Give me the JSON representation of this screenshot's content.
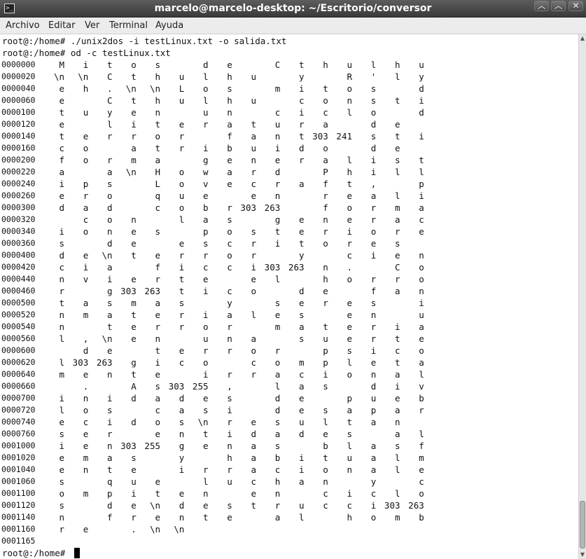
{
  "window": {
    "title": "marcelo@marcelo-desktop: ~/Escritorio/conversor",
    "app_icon": "terminal-icon",
    "controls": {
      "minimize": "︿",
      "maximize": "︿",
      "close": "✕"
    }
  },
  "menu": [
    "Archivo",
    "Editar",
    "Ver",
    "Terminal",
    "Ayuda"
  ],
  "terminal": {
    "commands": [
      "root@:/home# ./unix2dos -i testLinux.txt -o salida.txt",
      "root@:/home# od -c testLinux.txt"
    ],
    "od_rows": [
      {
        "addr": "0000000",
        "chars": [
          "M",
          "i",
          "t",
          "o",
          "s",
          "",
          "d",
          "e",
          "",
          "C",
          "t",
          "h",
          "u",
          "l",
          "h",
          "u"
        ]
      },
      {
        "addr": "0000020",
        "chars": [
          "\\n",
          "\\n",
          "C",
          "t",
          "h",
          "u",
          "l",
          "h",
          "u",
          "",
          "y",
          "",
          "R",
          "'",
          "l",
          "y"
        ]
      },
      {
        "addr": "0000040",
        "chars": [
          "e",
          "h",
          ".",
          "\\n",
          "\\n",
          "L",
          "o",
          "s",
          "",
          "m",
          "i",
          "t",
          "o",
          "s",
          "",
          "d"
        ]
      },
      {
        "addr": "0000060",
        "chars": [
          "e",
          "",
          "C",
          "t",
          "h",
          "u",
          "l",
          "h",
          "u",
          "",
          "c",
          "o",
          "n",
          "s",
          "t",
          "i"
        ]
      },
      {
        "addr": "0000100",
        "chars": [
          "t",
          "u",
          "y",
          "e",
          "n",
          "",
          "u",
          "n",
          "",
          "c",
          "i",
          "c",
          "l",
          "o",
          "",
          "d"
        ]
      },
      {
        "addr": "0000120",
        "chars": [
          "e",
          "",
          "l",
          "i",
          "t",
          "e",
          "r",
          "a",
          "t",
          "u",
          "r",
          "a",
          "",
          "d",
          "e",
          ""
        ]
      },
      {
        "addr": "0000140",
        "chars": [
          "t",
          "e",
          "r",
          "r",
          "o",
          "r",
          "",
          "f",
          "a",
          "n",
          "t",
          "303",
          "241",
          "s",
          "t",
          "i"
        ]
      },
      {
        "addr": "0000160",
        "chars": [
          "c",
          "o",
          "",
          "a",
          "t",
          "r",
          "i",
          "b",
          "u",
          "i",
          "d",
          "o",
          "",
          "d",
          "e",
          ""
        ]
      },
      {
        "addr": "0000200",
        "chars": [
          "f",
          "o",
          "r",
          "m",
          "a",
          "",
          "g",
          "e",
          "n",
          "e",
          "r",
          "a",
          "l",
          "i",
          "s",
          "t"
        ]
      },
      {
        "addr": "0000220",
        "chars": [
          "a",
          "",
          "a",
          "\\n",
          "H",
          "o",
          "w",
          "a",
          "r",
          "d",
          "",
          "P",
          "h",
          "i",
          "l",
          "l"
        ]
      },
      {
        "addr": "0000240",
        "chars": [
          "i",
          "p",
          "s",
          "",
          "L",
          "o",
          "v",
          "e",
          "c",
          "r",
          "a",
          "f",
          "t",
          ",",
          "",
          "p"
        ]
      },
      {
        "addr": "0000260",
        "chars": [
          "e",
          "r",
          "o",
          "",
          "q",
          "u",
          "e",
          "",
          "e",
          "n",
          "",
          "r",
          "e",
          "a",
          "l",
          "i"
        ]
      },
      {
        "addr": "0000300",
        "chars": [
          "d",
          "a",
          "d",
          "",
          "c",
          "o",
          "b",
          "r",
          "303",
          "263",
          "",
          "f",
          "o",
          "r",
          "m",
          "a"
        ]
      },
      {
        "addr": "0000320",
        "chars": [
          "",
          "c",
          "o",
          "n",
          "",
          "l",
          "a",
          "s",
          "",
          "g",
          "e",
          "n",
          "e",
          "r",
          "a",
          "c"
        ]
      },
      {
        "addr": "0000340",
        "chars": [
          "i",
          "o",
          "n",
          "e",
          "s",
          "",
          "p",
          "o",
          "s",
          "t",
          "e",
          "r",
          "i",
          "o",
          "r",
          "e"
        ]
      },
      {
        "addr": "0000360",
        "chars": [
          "s",
          "",
          "d",
          "e",
          "",
          "e",
          "s",
          "c",
          "r",
          "i",
          "t",
          "o",
          "r",
          "e",
          "s",
          ""
        ]
      },
      {
        "addr": "0000400",
        "chars": [
          "d",
          "e",
          "\\n",
          "t",
          "e",
          "r",
          "r",
          "o",
          "r",
          "",
          "y",
          "",
          "c",
          "i",
          "e",
          "n"
        ]
      },
      {
        "addr": "0000420",
        "chars": [
          "c",
          "i",
          "a",
          "",
          "f",
          "i",
          "c",
          "c",
          "i",
          "303",
          "263",
          "n",
          ".",
          "",
          "C",
          "o"
        ]
      },
      {
        "addr": "0000440",
        "chars": [
          "n",
          "v",
          "i",
          "e",
          "r",
          "t",
          "e",
          "",
          "e",
          "l",
          "",
          "h",
          "o",
          "r",
          "r",
          "o"
        ]
      },
      {
        "addr": "0000460",
        "chars": [
          "r",
          "",
          "g",
          "303",
          "263",
          "t",
          "i",
          "c",
          "o",
          "",
          "d",
          "e",
          "",
          "f",
          "a",
          "n"
        ]
      },
      {
        "addr": "0000500",
        "chars": [
          "t",
          "a",
          "s",
          "m",
          "a",
          "s",
          "",
          "y",
          "",
          "s",
          "e",
          "r",
          "e",
          "s",
          "",
          "i"
        ]
      },
      {
        "addr": "0000520",
        "chars": [
          "n",
          "m",
          "a",
          "t",
          "e",
          "r",
          "i",
          "a",
          "l",
          "e",
          "s",
          "",
          "e",
          "n",
          "",
          "u"
        ]
      },
      {
        "addr": "0000540",
        "chars": [
          "n",
          "",
          "t",
          "e",
          "r",
          "r",
          "o",
          "r",
          "",
          "m",
          "a",
          "t",
          "e",
          "r",
          "i",
          "a"
        ]
      },
      {
        "addr": "0000560",
        "chars": [
          "l",
          ",",
          "\\n",
          "e",
          "n",
          "",
          "u",
          "n",
          "a",
          "",
          "s",
          "u",
          "e",
          "r",
          "t",
          "e"
        ]
      },
      {
        "addr": "0000600",
        "chars": [
          "",
          "d",
          "e",
          "",
          "t",
          "e",
          "r",
          "r",
          "o",
          "r",
          "",
          "p",
          "s",
          "i",
          "c",
          "o"
        ]
      },
      {
        "addr": "0000620",
        "chars": [
          "l",
          "303",
          "263",
          "g",
          "i",
          "c",
          "o",
          "",
          "c",
          "o",
          "m",
          "p",
          "l",
          "e",
          "t",
          "a"
        ]
      },
      {
        "addr": "0000640",
        "chars": [
          "m",
          "e",
          "n",
          "t",
          "e",
          "",
          "i",
          "r",
          "r",
          "a",
          "c",
          "i",
          "o",
          "n",
          "a",
          "l"
        ]
      },
      {
        "addr": "0000660",
        "chars": [
          "",
          ".",
          "",
          "A",
          "s",
          "303",
          "255",
          ",",
          "",
          "l",
          "a",
          "s",
          "",
          "d",
          "i",
          "v"
        ]
      },
      {
        "addr": "0000700",
        "chars": [
          "i",
          "n",
          "i",
          "d",
          "a",
          "d",
          "e",
          "s",
          "",
          "d",
          "e",
          "",
          "p",
          "u",
          "e",
          "b"
        ]
      },
      {
        "addr": "0000720",
        "chars": [
          "l",
          "o",
          "s",
          "",
          "c",
          "a",
          "s",
          "i",
          "",
          "d",
          "e",
          "s",
          "a",
          "p",
          "a",
          "r"
        ]
      },
      {
        "addr": "0000740",
        "chars": [
          "e",
          "c",
          "i",
          "d",
          "o",
          "s",
          "\\n",
          "r",
          "e",
          "s",
          "u",
          "l",
          "t",
          "a",
          "n",
          ""
        ]
      },
      {
        "addr": "0000760",
        "chars": [
          "s",
          "e",
          "r",
          "",
          "e",
          "n",
          "t",
          "i",
          "d",
          "a",
          "d",
          "e",
          "s",
          "",
          "a",
          "l"
        ]
      },
      {
        "addr": "0001000",
        "chars": [
          "i",
          "e",
          "n",
          "303",
          "255",
          "g",
          "e",
          "n",
          "a",
          "s",
          "",
          "b",
          "l",
          "a",
          "s",
          "f"
        ]
      },
      {
        "addr": "0001020",
        "chars": [
          "e",
          "m",
          "a",
          "s",
          "",
          "y",
          "",
          "h",
          "a",
          "b",
          "i",
          "t",
          "u",
          "a",
          "l",
          "m"
        ]
      },
      {
        "addr": "0001040",
        "chars": [
          "e",
          "n",
          "t",
          "e",
          "",
          "i",
          "r",
          "r",
          "a",
          "c",
          "i",
          "o",
          "n",
          "a",
          "l",
          "e"
        ]
      },
      {
        "addr": "0001060",
        "chars": [
          "s",
          "",
          "q",
          "u",
          "e",
          "",
          "l",
          "u",
          "c",
          "h",
          "a",
          "n",
          "",
          "y",
          "",
          "c"
        ]
      },
      {
        "addr": "0001100",
        "chars": [
          "o",
          "m",
          "p",
          "i",
          "t",
          "e",
          "n",
          "",
          "e",
          "n",
          "",
          "c",
          "i",
          "c",
          "l",
          "o"
        ]
      },
      {
        "addr": "0001120",
        "chars": [
          "s",
          "",
          "d",
          "e",
          "\\n",
          "d",
          "e",
          "s",
          "t",
          "r",
          "u",
          "c",
          "c",
          "i",
          "303",
          "263"
        ]
      },
      {
        "addr": "0001140",
        "chars": [
          "n",
          "",
          "f",
          "r",
          "e",
          "n",
          "t",
          "e",
          "",
          "a",
          "l",
          "",
          "h",
          "o",
          "m",
          "b"
        ]
      },
      {
        "addr": "0001160",
        "chars": [
          "r",
          "e",
          "",
          ".",
          "\\n",
          "\\n",
          "",
          "",
          "",
          "",
          "",
          "",
          "",
          "",
          "",
          ""
        ]
      }
    ],
    "final_offset": "0001165",
    "prompt": "root@:/home#"
  },
  "scrollbar": {
    "position_fraction": 0.95
  }
}
